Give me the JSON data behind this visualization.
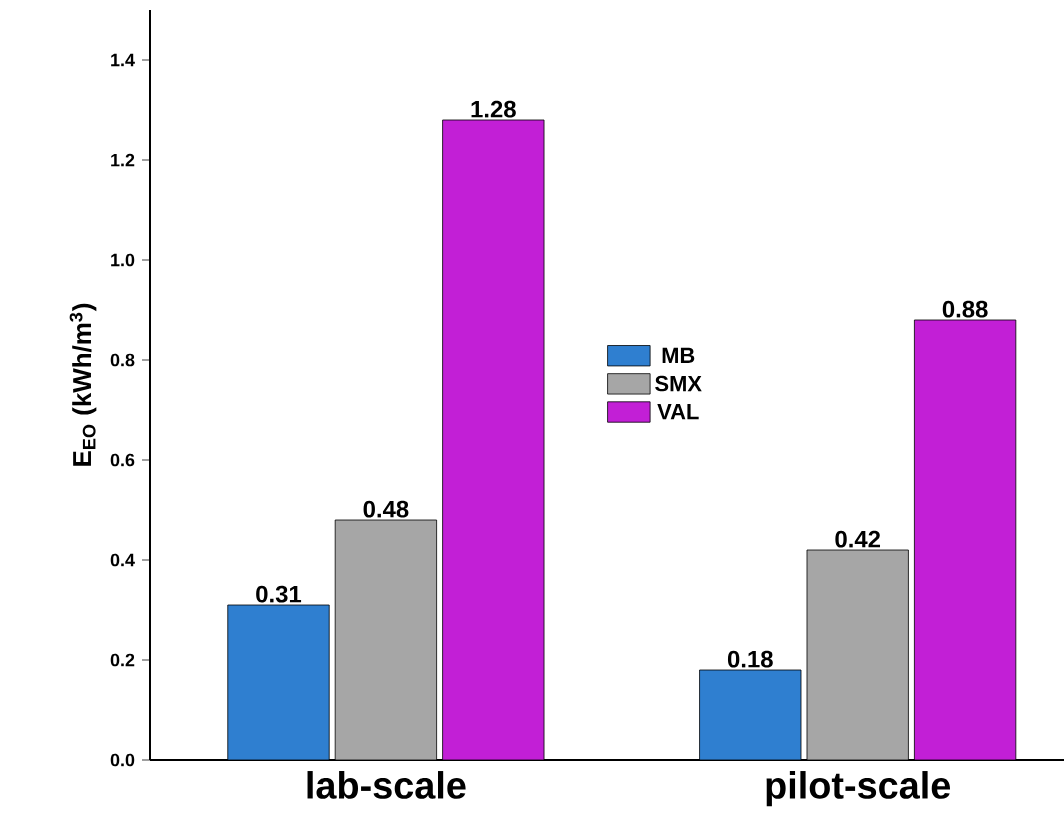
{
  "chart_data": {
    "type": "bar",
    "ylabel": "E$_{EO}$ (kWh/m$^{3}$)",
    "categories": [
      "lab-scale",
      "pilot-scale"
    ],
    "series": [
      {
        "name": "MB",
        "color": "#2f7fd0",
        "values": [
          0.31,
          0.18
        ]
      },
      {
        "name": "SMX",
        "color": "#a6a6a6",
        "values": [
          0.48,
          0.42
        ]
      },
      {
        "name": "VAL",
        "color": "#c21fd6",
        "values": [
          1.28,
          0.88
        ]
      }
    ],
    "ylim": [
      0,
      1.5
    ],
    "yticks": [
      {
        "value": 0,
        "label": "0.0"
      },
      0.2,
      0.4,
      0.6,
      0.8,
      {
        "value": 1,
        "label": "1.0"
      },
      1.2,
      1.4
    ],
    "data_labels": true,
    "legend": "center",
    "grid": false
  }
}
